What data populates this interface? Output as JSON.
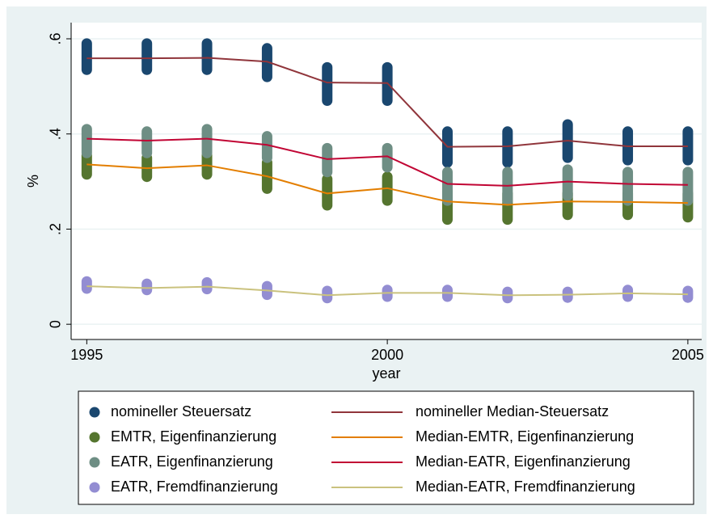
{
  "chart_data": {
    "type": "line",
    "x": [
      1995,
      1996,
      1997,
      1998,
      1999,
      2000,
      2001,
      2002,
      2003,
      2004,
      2005
    ],
    "xlim": [
      1994.74,
      2005.23
    ],
    "xticks": [
      1995,
      2000,
      2005
    ],
    "ylim": [
      -0.032,
      0.634
    ],
    "yticks": [
      0,
      {
        "value": 0.2,
        "label": ".2"
      },
      {
        "value": 0.4,
        "label": ".4"
      },
      {
        "value": 0.6,
        "label": ".6"
      }
    ],
    "xlabel": "year",
    "ylabel": "%",
    "grid": true,
    "legend": "bottom",
    "scatter_ranges": [
      {
        "name": "nomineller Steuersatz",
        "color": "#1a476f",
        "high": [
          0.59,
          0.59,
          0.59,
          0.58,
          0.54,
          0.54,
          0.405,
          0.405,
          0.42,
          0.405,
          0.405
        ],
        "low": [
          0.535,
          0.535,
          0.535,
          0.52,
          0.47,
          0.47,
          0.34,
          0.34,
          0.35,
          0.345,
          0.345
        ]
      },
      {
        "name": "EMTR, Eigenfinanzierung",
        "color": "#55752f",
        "high": [
          0.355,
          0.35,
          0.355,
          0.34,
          0.305,
          0.31,
          0.28,
          0.275,
          0.275,
          0.275,
          0.275
        ],
        "low": [
          0.315,
          0.31,
          0.315,
          0.285,
          0.25,
          0.26,
          0.22,
          0.22,
          0.23,
          0.23,
          0.225
        ]
      },
      {
        "name": "EATR, Eigenfinanzierung",
        "color": "#6e8e84",
        "high": [
          0.41,
          0.405,
          0.41,
          0.395,
          0.37,
          0.37,
          0.32,
          0.32,
          0.325,
          0.32,
          0.32
        ],
        "low": [
          0.36,
          0.36,
          0.36,
          0.35,
          0.32,
          0.33,
          0.26,
          0.26,
          0.27,
          0.26,
          0.26
        ]
      },
      {
        "name": "EATR, Fremdfinanzierung",
        "color": "#938dd2",
        "high": [
          0.09,
          0.085,
          0.088,
          0.08,
          0.07,
          0.072,
          0.072,
          0.068,
          0.068,
          0.072,
          0.07
        ],
        "low": [
          0.075,
          0.072,
          0.074,
          0.062,
          0.055,
          0.058,
          0.058,
          0.055,
          0.056,
          0.058,
          0.056
        ]
      }
    ],
    "series": [
      {
        "name": "nomineller Median-Steuersatz",
        "color": "#90353b",
        "values": [
          0.559,
          0.559,
          0.56,
          0.552,
          0.508,
          0.507,
          0.373,
          0.374,
          0.386,
          0.374,
          0.374
        ]
      },
      {
        "name": "Median-EMTR, Eigenfinanzierung",
        "color": "#e37e00",
        "values": [
          0.336,
          0.328,
          0.334,
          0.311,
          0.275,
          0.286,
          0.258,
          0.251,
          0.258,
          0.257,
          0.255
        ]
      },
      {
        "name": "Median-EATR, Eigenfinanzierung",
        "color": "#c10534",
        "values": [
          0.39,
          0.386,
          0.39,
          0.377,
          0.347,
          0.353,
          0.295,
          0.291,
          0.3,
          0.295,
          0.293
        ]
      },
      {
        "name": "Median-EATR, Fremdfinanzierung",
        "color": "#cac27e",
        "values": [
          0.08,
          0.076,
          0.079,
          0.071,
          0.061,
          0.066,
          0.066,
          0.061,
          0.062,
          0.065,
          0.063
        ]
      }
    ]
  }
}
